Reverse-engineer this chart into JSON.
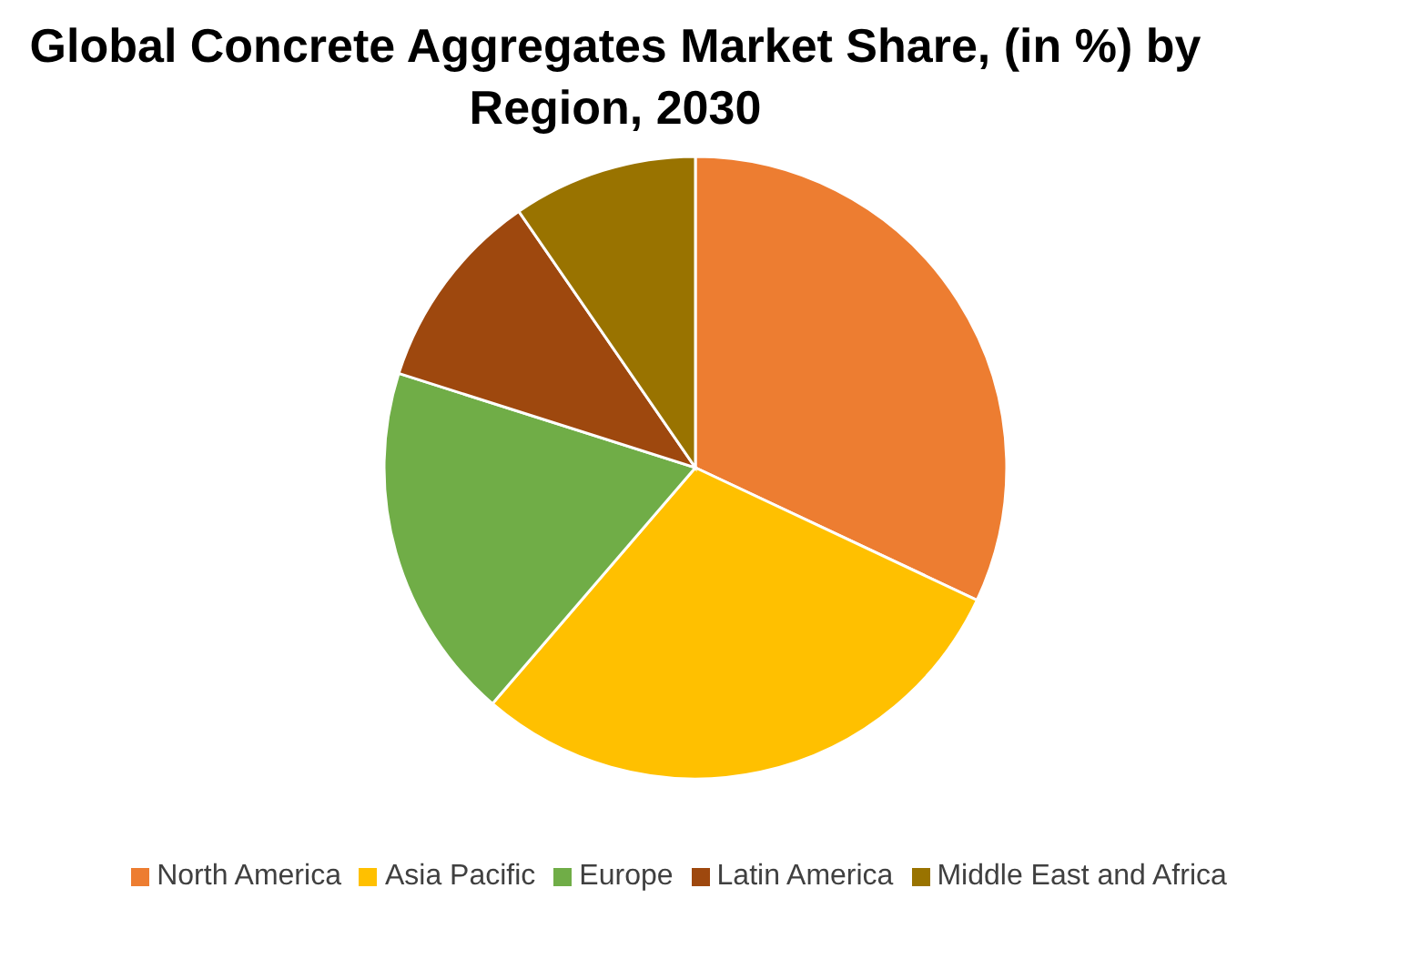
{
  "chart_data": {
    "type": "pie",
    "title": "Global Concrete Aggregates Market Share, (in %) by Region, 2030",
    "categories": [
      "North America",
      "Asia Pacific",
      "Europe",
      "Latin America",
      "Middle East and Africa"
    ],
    "values": [
      32,
      29.3,
      18.6,
      10.5,
      9.6
    ],
    "colors": [
      "#ed7d31",
      "#ffc000",
      "#70ad47",
      "#9e480e",
      "#997300"
    ],
    "legend": "bottom"
  }
}
